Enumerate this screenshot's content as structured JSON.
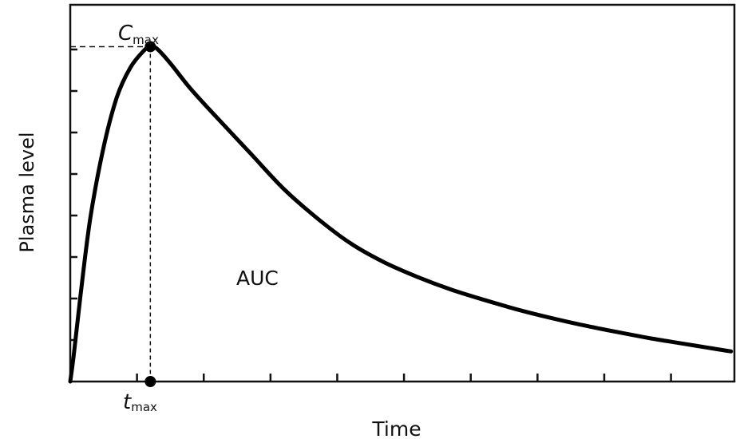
{
  "chart_data": {
    "type": "line",
    "title": "",
    "xlabel": "Time",
    "ylabel": "Plasma level",
    "x_ticks": 10,
    "y_ticks": 8,
    "grid": false,
    "legend": "none",
    "curve_color": "#000000",
    "series": [
      {
        "x": [
          0,
          0.05,
          0.15,
          0.3,
          0.5,
          0.7,
          0.9,
          1.1,
          1.2,
          1.3,
          1.5,
          1.8,
          2.2,
          2.7,
          3.2,
          3.7,
          4.2,
          4.7,
          5.2,
          5.7,
          6.2,
          6.7,
          7.2,
          7.7,
          8.2,
          8.7,
          9.2,
          9.7,
          9.9
        ],
        "y": [
          0,
          0.6,
          2.0,
          3.9,
          5.6,
          6.8,
          7.5,
          7.9,
          8.0,
          7.95,
          7.6,
          7.0,
          6.3,
          5.45,
          4.6,
          3.9,
          3.3,
          2.85,
          2.5,
          2.2,
          1.95,
          1.72,
          1.52,
          1.34,
          1.18,
          1.03,
          0.9,
          0.77,
          0.72
        ]
      }
    ],
    "annotations": {
      "cmax_main": "C",
      "cmax_sub": "max",
      "tmax_main": "t",
      "tmax_sub": "max",
      "area": "AUC"
    },
    "peak": {
      "x": 1.2,
      "y": 8.0
    },
    "xlim": [
      0,
      9.95
    ],
    "ylim": [
      0,
      9
    ]
  }
}
